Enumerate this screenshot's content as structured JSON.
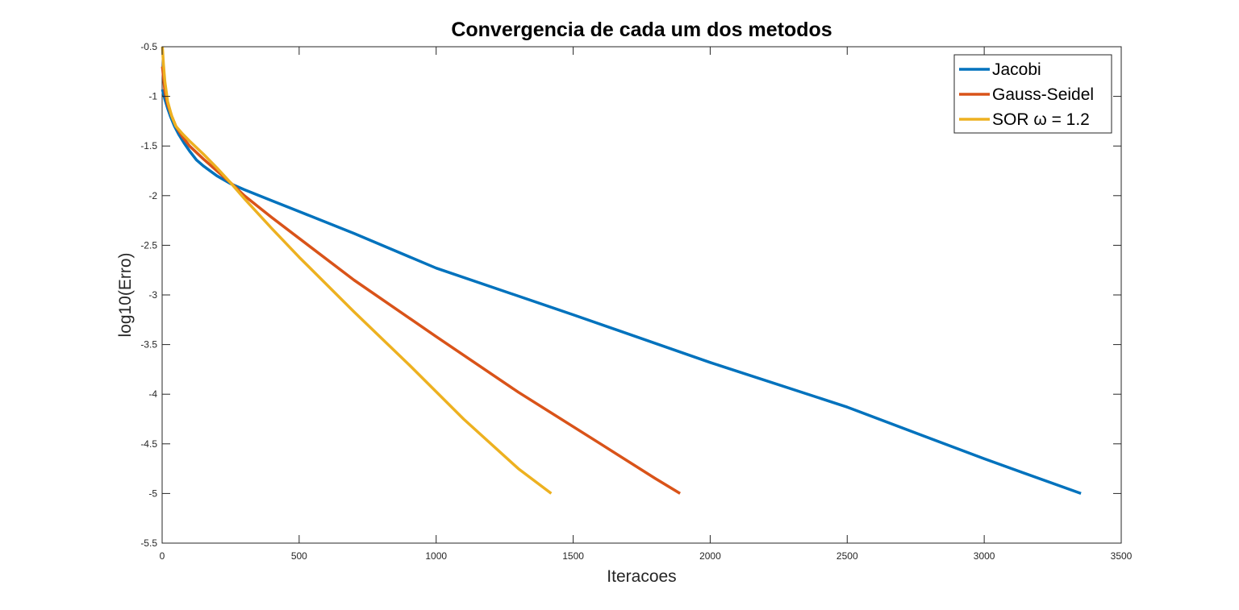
{
  "chart_data": {
    "type": "line",
    "title": "Convergencia de cada um dos metodos",
    "xlabel": "Iteracoes",
    "ylabel": "log10(Erro)",
    "xlim": [
      0,
      3500
    ],
    "ylim": [
      -5.5,
      -0.5
    ],
    "xticks": [
      "0",
      "500",
      "1000",
      "1500",
      "2000",
      "2500",
      "3000",
      "3500"
    ],
    "yticks": [
      "-0.5",
      "-1",
      "-1.5",
      "-2",
      "-2.5",
      "-3",
      "-3.5",
      "-4",
      "-4.5",
      "-5",
      "-5.5"
    ],
    "grid": false,
    "legend_position": "top-right",
    "series": [
      {
        "name": "Jacobi",
        "color": "#0072BD",
        "x": [
          1,
          10,
          20,
          30,
          45,
          60,
          80,
          100,
          125,
          150,
          200,
          250,
          300,
          400,
          500,
          700,
          1000,
          1500,
          2000,
          2500,
          3000,
          3353
        ],
        "y": [
          -0.93,
          -1.03,
          -1.12,
          -1.2,
          -1.3,
          -1.38,
          -1.47,
          -1.55,
          -1.64,
          -1.7,
          -1.8,
          -1.88,
          -1.94,
          -2.05,
          -2.16,
          -2.38,
          -2.73,
          -3.2,
          -3.68,
          -4.13,
          -4.65,
          -5.0
        ]
      },
      {
        "name": "Gauss-Seidel",
        "color": "#D95319",
        "x": [
          1,
          10,
          20,
          35,
          50,
          75,
          100,
          150,
          200,
          250,
          300,
          400,
          500,
          700,
          1000,
          1300,
          1600,
          1800,
          1890
        ],
        "y": [
          -0.7,
          -0.95,
          -1.08,
          -1.2,
          -1.3,
          -1.41,
          -1.5,
          -1.63,
          -1.75,
          -1.87,
          -2.0,
          -2.22,
          -2.43,
          -2.85,
          -3.42,
          -3.98,
          -4.5,
          -4.85,
          -5.0
        ]
      },
      {
        "name": "SOR ω = 1.2",
        "color": "#EDB120",
        "x": [
          1,
          5,
          10,
          20,
          35,
          50,
          75,
          100,
          150,
          200,
          250,
          300,
          400,
          500,
          700,
          900,
          1100,
          1300,
          1420
        ],
        "y": [
          -0.5,
          -0.68,
          -0.85,
          -1.05,
          -1.2,
          -1.3,
          -1.38,
          -1.45,
          -1.58,
          -1.72,
          -1.87,
          -2.03,
          -2.33,
          -2.62,
          -3.17,
          -3.7,
          -4.25,
          -4.75,
          -5.0
        ]
      }
    ]
  }
}
